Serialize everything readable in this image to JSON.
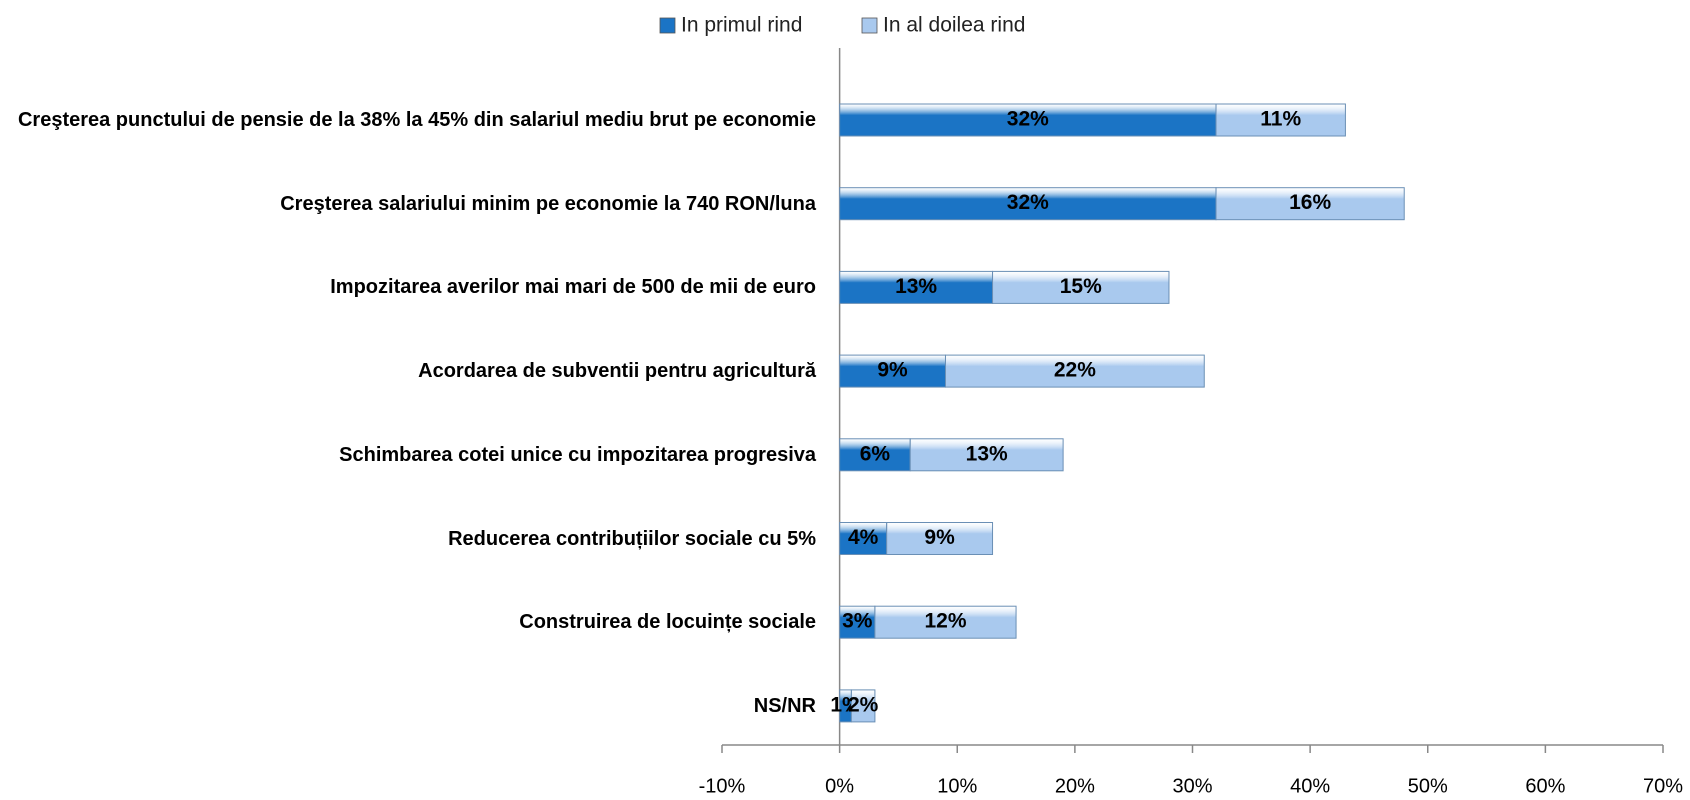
{
  "chart_data": {
    "type": "stacked_barh",
    "categories": [
      "Creşterea punctului de pensie de la 38% la 45% din salariul mediu brut pe economie",
      "Creşterea salariului minim pe economie la 740 RON/luna",
      "Impozitarea averilor mai mari de 500 de mii de euro",
      "Acordarea de subventii pentru agricultură",
      "Schimbarea cotei unice cu impozitarea progresiva",
      "Reducerea contribuțiilor sociale cu 5%",
      "Construirea de locuințe sociale",
      "NS/NR"
    ],
    "series": [
      {
        "name": "In primul rind",
        "color": "#1b74c5",
        "values": [
          32,
          32,
          13,
          9,
          6,
          4,
          3,
          1
        ],
        "value_labels": [
          "32%",
          "32%",
          "13%",
          "9%",
          "6%",
          "4%",
          "3%",
          "1%"
        ]
      },
      {
        "name": "In al doilea rind",
        "color": "#a9c9ee",
        "values": [
          11,
          16,
          15,
          22,
          13,
          9,
          12,
          2
        ],
        "value_labels": [
          "11%",
          "16%",
          "15%",
          "22%",
          "13%",
          "9%",
          "12%",
          "2%"
        ]
      }
    ],
    "xlim": [
      -10,
      70
    ],
    "xticks": [
      {
        "value": -10,
        "label": "-10%"
      },
      {
        "value": 0,
        "label": "0%"
      },
      {
        "value": 10,
        "label": "10%"
      },
      {
        "value": 20,
        "label": "20%"
      },
      {
        "value": 30,
        "label": "30%"
      },
      {
        "value": 40,
        "label": "40%"
      },
      {
        "value": 50,
        "label": "50%"
      },
      {
        "value": 60,
        "label": "60%"
      },
      {
        "value": 70,
        "label": "70%"
      }
    ],
    "legend": "top"
  }
}
